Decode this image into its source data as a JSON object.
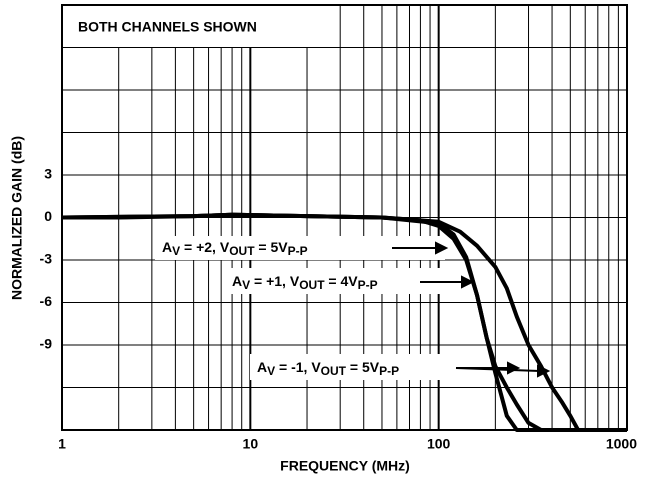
{
  "chart_data": {
    "type": "line",
    "title": "BOTH CHANNELS SHOWN",
    "x_label": "FREQUENCY (MHz)",
    "y_label": "NORMALIZED GAIN (dB)",
    "xlog": true,
    "xlim": [
      1,
      1000
    ],
    "xticks": [
      1,
      10,
      100,
      1000
    ],
    "ylim": [
      -15,
      15
    ],
    "yticks": [
      3,
      0,
      -3,
      -6,
      -9
    ],
    "ygrid": [
      -15,
      -12,
      -9,
      -6,
      -3,
      0,
      3,
      6,
      9,
      12,
      15
    ],
    "grid": true,
    "series": [
      {
        "color": "#000000",
        "x": [
          1,
          2,
          5,
          8,
          20,
          50,
          80,
          100,
          120,
          140,
          160,
          180,
          200,
          230,
          260,
          1000
        ],
        "values": [
          0,
          0,
          0.1,
          0.2,
          0.1,
          0,
          -0.2,
          -0.6,
          -1.5,
          -3,
          -5.5,
          -8.5,
          -11,
          -14,
          -15,
          -15
        ]
      },
      {
        "color": "#000000",
        "x": [
          1,
          5,
          8,
          20,
          50,
          100,
          130,
          160,
          200,
          230,
          260,
          300,
          350,
          400,
          450,
          500,
          550,
          1000
        ],
        "values": [
          0,
          0.1,
          0.2,
          0.1,
          0,
          -0.3,
          -1,
          -2,
          -3.5,
          -5,
          -7,
          -9,
          -10.5,
          -12,
          -13,
          -14,
          -15,
          -15
        ]
      },
      {
        "color": "#000000",
        "x": [
          1,
          5,
          8,
          20,
          50,
          100,
          120,
          140,
          160,
          180,
          200,
          230,
          260,
          300,
          350,
          1000
        ],
        "values": [
          0,
          0.1,
          0.2,
          0.1,
          0,
          -0.4,
          -1.2,
          -2.8,
          -5.5,
          -8.5,
          -10.5,
          -12,
          -13.2,
          -14.5,
          -15,
          -15
        ]
      }
    ],
    "annotations": [
      {
        "parts": [
          {
            "text": "A"
          },
          {
            "text": "V",
            "sub": true
          },
          {
            "text": " = +2, V"
          },
          {
            "text": "OUT",
            "sub": true
          },
          {
            "text": " = 5V"
          },
          {
            "text": "P-P",
            "sub": true
          }
        ]
      },
      {
        "parts": [
          {
            "text": "A"
          },
          {
            "text": "V",
            "sub": true
          },
          {
            "text": " = +1, V"
          },
          {
            "text": "OUT",
            "sub": true
          },
          {
            "text": " = 4V"
          },
          {
            "text": "P-P",
            "sub": true
          }
        ]
      },
      {
        "parts": [
          {
            "text": "A"
          },
          {
            "text": "V",
            "sub": true
          },
          {
            "text": " = -1, V"
          },
          {
            "text": "OUT",
            "sub": true
          },
          {
            "text": " = 5V"
          },
          {
            "text": "P-P",
            "sub": true
          }
        ]
      }
    ]
  }
}
